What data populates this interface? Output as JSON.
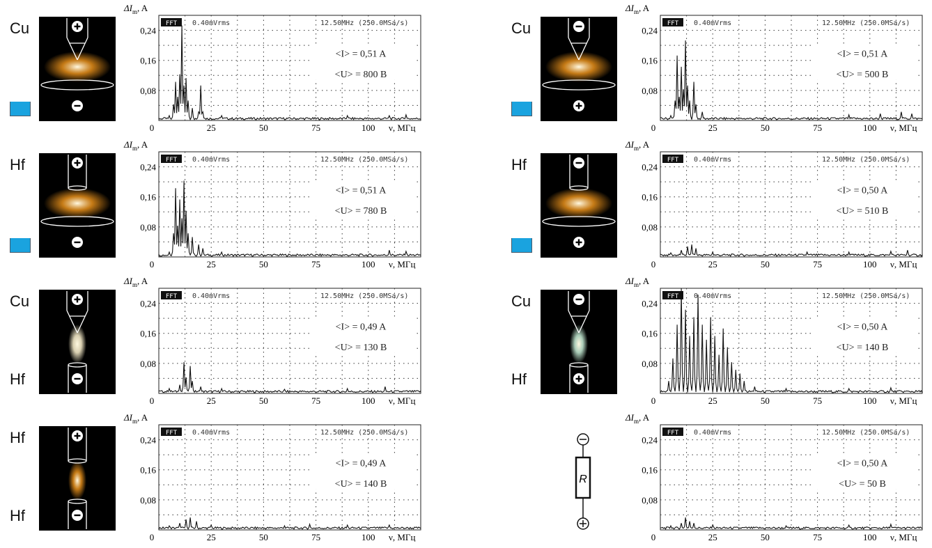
{
  "scope_header": {
    "mode": "FFT",
    "scale": "0.40mVrms",
    "span": "12.50MHz (250.0MSa/s)"
  },
  "y_axis_label": "ΔI",
  "y_axis_subscript": "m",
  "y_axis_unit": ", A",
  "x_axis_label": "ν, МГц",
  "x_ticks": [
    "0",
    "25",
    "50",
    "75",
    "100"
  ],
  "y_ticks": [
    "0,24",
    "0,16",
    "0,08"
  ],
  "colors": {
    "trace": "#111111",
    "beaker": "#1aa3df",
    "glow_orange": "#e8901a",
    "glow_white": "#fff4d0",
    "glow_green": "#c8f0d8"
  },
  "panels": [
    {
      "id": "left-1",
      "top_label": "Cu",
      "bottom_label": "",
      "beaker": true,
      "top_sign": "+",
      "bottom_sign": "−",
      "electrode": "cone-plane",
      "glow": "orange",
      "current_text": "<I> = 0,51 A",
      "voltage_text": "<U> = 800 B"
    },
    {
      "id": "left-2",
      "top_label": "Hf",
      "bottom_label": "",
      "beaker": true,
      "top_sign": "+",
      "bottom_sign": "−",
      "electrode": "tube-plane",
      "glow": "orange",
      "current_text": "<I> = 0,51 A",
      "voltage_text": "<U> = 780 B"
    },
    {
      "id": "left-3",
      "top_label": "Cu",
      "bottom_label": "Hf",
      "beaker": false,
      "top_sign": "+",
      "bottom_sign": "−",
      "electrode": "cone-tube",
      "glow": "white",
      "current_text": "<I> = 0,49 A",
      "voltage_text": "<U> = 130 B"
    },
    {
      "id": "left-4",
      "top_label": "Hf",
      "bottom_label": "Hf",
      "beaker": false,
      "top_sign": "+",
      "bottom_sign": "−",
      "electrode": "tube-tube",
      "glow": "orange",
      "current_text": "<I> = 0,49 A",
      "voltage_text": "<U> = 140 B"
    },
    {
      "id": "right-1",
      "top_label": "Cu",
      "bottom_label": "",
      "beaker": true,
      "top_sign": "−",
      "bottom_sign": "+",
      "electrode": "cone-plane",
      "glow": "orange",
      "current_text": "<I> = 0,51 A",
      "voltage_text": "<U> = 500 B"
    },
    {
      "id": "right-2",
      "top_label": "Hf",
      "bottom_label": "",
      "beaker": true,
      "top_sign": "−",
      "bottom_sign": "+",
      "electrode": "tube-plane",
      "glow": "orange",
      "current_text": "<I> = 0,50 A",
      "voltage_text": "<U> = 510 B"
    },
    {
      "id": "right-3",
      "top_label": "Cu",
      "bottom_label": "Hf",
      "beaker": false,
      "top_sign": "−",
      "bottom_sign": "+",
      "electrode": "cone-tube",
      "glow": "green",
      "current_text": "<I> = 0,50 A",
      "voltage_text": "<U> = 140 B"
    },
    {
      "id": "right-4",
      "top_label": "",
      "bottom_label": "",
      "beaker": false,
      "top_sign": "−",
      "bottom_sign": "+",
      "electrode": "resistor",
      "resistor_label": "R",
      "glow": "none",
      "current_text": "<I> = 0,50 A",
      "voltage_text": "<U> = 50 B"
    }
  ],
  "chart_data": [
    {
      "type": "line",
      "panel": "left-1",
      "xlim": [
        0,
        125
      ],
      "ylim": [
        0,
        0.28
      ],
      "grid": true,
      "peaks": [
        [
          5,
          0.01
        ],
        [
          7,
          0.04
        ],
        [
          8,
          0.1
        ],
        [
          9,
          0.06
        ],
        [
          10,
          0.12
        ],
        [
          11,
          0.25
        ],
        [
          12,
          0.09
        ],
        [
          13,
          0.11
        ],
        [
          14,
          0.05
        ],
        [
          16,
          0.03
        ],
        [
          19,
          0.02
        ],
        [
          20,
          0.09
        ],
        [
          21,
          0.02
        ],
        [
          30,
          0.01
        ],
        [
          90,
          0.01
        ],
        [
          110,
          0.01
        ],
        [
          118,
          0.012
        ]
      ]
    },
    {
      "type": "line",
      "panel": "left-2",
      "xlim": [
        0,
        125
      ],
      "ylim": [
        0,
        0.28
      ],
      "grid": true,
      "peaks": [
        [
          5,
          0.01
        ],
        [
          7,
          0.06
        ],
        [
          8,
          0.18
        ],
        [
          9,
          0.08
        ],
        [
          10,
          0.15
        ],
        [
          11,
          0.1
        ],
        [
          12,
          0.2
        ],
        [
          13,
          0.12
        ],
        [
          14,
          0.06
        ],
        [
          16,
          0.05
        ],
        [
          19,
          0.03
        ],
        [
          21,
          0.02
        ],
        [
          30,
          0.01
        ],
        [
          110,
          0.015
        ],
        [
          118,
          0.012
        ]
      ]
    },
    {
      "type": "line",
      "panel": "left-3",
      "xlim": [
        0,
        125
      ],
      "ylim": [
        0,
        0.28
      ],
      "grid": true,
      "peaks": [
        [
          5,
          0.01
        ],
        [
          10,
          0.02
        ],
        [
          12,
          0.08
        ],
        [
          13,
          0.04
        ],
        [
          15,
          0.07
        ],
        [
          16,
          0.03
        ],
        [
          20,
          0.015
        ],
        [
          30,
          0.01
        ],
        [
          60,
          0.008
        ],
        [
          90,
          0.01
        ],
        [
          108,
          0.015
        ]
      ]
    },
    {
      "type": "line",
      "panel": "left-4",
      "xlim": [
        0,
        125
      ],
      "ylim": [
        0,
        0.28
      ],
      "grid": true,
      "peaks": [
        [
          5,
          0.008
        ],
        [
          10,
          0.015
        ],
        [
          13,
          0.025
        ],
        [
          15,
          0.03
        ],
        [
          18,
          0.02
        ],
        [
          25,
          0.01
        ],
        [
          60,
          0.008
        ],
        [
          72,
          0.012
        ],
        [
          90,
          0.01
        ],
        [
          110,
          0.01
        ]
      ]
    },
    {
      "type": "line",
      "panel": "right-1",
      "xlim": [
        0,
        125
      ],
      "ylim": [
        0,
        0.28
      ],
      "grid": true,
      "peaks": [
        [
          5,
          0.01
        ],
        [
          7,
          0.05
        ],
        [
          8,
          0.17
        ],
        [
          9,
          0.06
        ],
        [
          10,
          0.14
        ],
        [
          11,
          0.08
        ],
        [
          12,
          0.21
        ],
        [
          13,
          0.09
        ],
        [
          14,
          0.05
        ],
        [
          16,
          0.1
        ],
        [
          17,
          0.04
        ],
        [
          20,
          0.02
        ],
        [
          90,
          0.012
        ],
        [
          105,
          0.015
        ],
        [
          115,
          0.02
        ],
        [
          120,
          0.015
        ]
      ]
    },
    {
      "type": "line",
      "panel": "right-2",
      "xlim": [
        0,
        125
      ],
      "ylim": [
        0,
        0.28
      ],
      "grid": true,
      "peaks": [
        [
          5,
          0.008
        ],
        [
          10,
          0.015
        ],
        [
          13,
          0.025
        ],
        [
          15,
          0.03
        ],
        [
          17,
          0.02
        ],
        [
          25,
          0.01
        ],
        [
          70,
          0.01
        ],
        [
          90,
          0.01
        ],
        [
          110,
          0.012
        ],
        [
          118,
          0.015
        ]
      ]
    },
    {
      "type": "line",
      "panel": "right-3",
      "xlim": [
        0,
        125
      ],
      "ylim": [
        0,
        0.28
      ],
      "grid": true,
      "peaks": [
        [
          4,
          0.03
        ],
        [
          6,
          0.09
        ],
        [
          8,
          0.18
        ],
        [
          10,
          0.3
        ],
        [
          12,
          0.22
        ],
        [
          14,
          0.15
        ],
        [
          16,
          0.2
        ],
        [
          18,
          0.26
        ],
        [
          20,
          0.18
        ],
        [
          22,
          0.14
        ],
        [
          24,
          0.2
        ],
        [
          26,
          0.15
        ],
        [
          28,
          0.1
        ],
        [
          30,
          0.17
        ],
        [
          32,
          0.12
        ],
        [
          34,
          0.08
        ],
        [
          36,
          0.06
        ],
        [
          38,
          0.05
        ],
        [
          40,
          0.03
        ],
        [
          45,
          0.015
        ],
        [
          60,
          0.01
        ],
        [
          90,
          0.01
        ],
        [
          110,
          0.012
        ]
      ]
    },
    {
      "type": "line",
      "panel": "right-4",
      "xlim": [
        0,
        125
      ],
      "ylim": [
        0,
        0.28
      ],
      "grid": true,
      "peaks": [
        [
          5,
          0.008
        ],
        [
          10,
          0.015
        ],
        [
          12,
          0.03
        ],
        [
          14,
          0.02
        ],
        [
          16,
          0.015
        ],
        [
          25,
          0.01
        ],
        [
          60,
          0.008
        ],
        [
          90,
          0.01
        ],
        [
          110,
          0.012
        ]
      ]
    }
  ]
}
